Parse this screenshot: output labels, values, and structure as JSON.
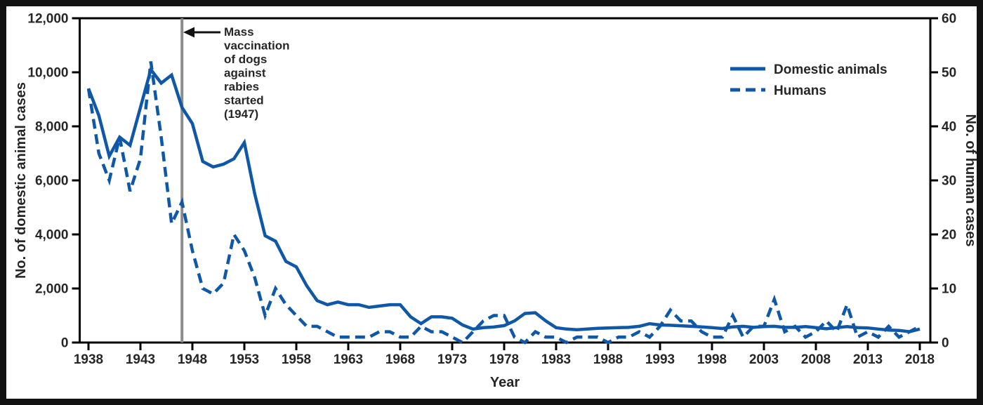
{
  "chart_data": {
    "type": "line",
    "x": [
      1938,
      1939,
      1940,
      1941,
      1942,
      1943,
      1944,
      1945,
      1946,
      1947,
      1948,
      1949,
      1950,
      1951,
      1952,
      1953,
      1954,
      1955,
      1956,
      1957,
      1958,
      1959,
      1960,
      1961,
      1962,
      1963,
      1964,
      1965,
      1966,
      1967,
      1968,
      1969,
      1970,
      1971,
      1972,
      1973,
      1974,
      1975,
      1976,
      1977,
      1978,
      1979,
      1980,
      1981,
      1982,
      1983,
      1984,
      1985,
      1986,
      1987,
      1988,
      1989,
      1990,
      1991,
      1992,
      1993,
      1994,
      1995,
      1996,
      1997,
      1998,
      1999,
      2000,
      2001,
      2002,
      2003,
      2004,
      2005,
      2006,
      2007,
      2008,
      2009,
      2010,
      2011,
      2012,
      2013,
      2014,
      2015,
      2016,
      2017,
      2018
    ],
    "series": [
      {
        "name": "Domestic animals",
        "axis": "left",
        "style": "solid",
        "values": [
          9400,
          8400,
          6900,
          7600,
          7300,
          8700,
          10100,
          9600,
          9900,
          8700,
          8100,
          6700,
          6500,
          6600,
          6800,
          7400,
          5500,
          3950,
          3750,
          3000,
          2800,
          2100,
          1550,
          1400,
          1500,
          1400,
          1400,
          1300,
          1350,
          1400,
          1400,
          950,
          700,
          950,
          950,
          900,
          650,
          500,
          550,
          575,
          625,
          800,
          1075,
          1100,
          800,
          550,
          500,
          475,
          500,
          525,
          540,
          550,
          560,
          600,
          700,
          650,
          640,
          620,
          600,
          580,
          550,
          520,
          580,
          600,
          560,
          590,
          600,
          560,
          560,
          590,
          550,
          510,
          550,
          590,
          550,
          540,
          500,
          460,
          450,
          400,
          500
        ]
      },
      {
        "name": "Humans",
        "axis": "right",
        "style": "dashed",
        "values": [
          47,
          35,
          30,
          38,
          28,
          34,
          52,
          38,
          22,
          26,
          17,
          10,
          9,
          11,
          20,
          17,
          12,
          5,
          10,
          7,
          5,
          3,
          3,
          2,
          1,
          1,
          1,
          1,
          2,
          2,
          1,
          1,
          3,
          2,
          2,
          1,
          0,
          2,
          4,
          5,
          5,
          1,
          0,
          2,
          1,
          1,
          0,
          1,
          1,
          1,
          0,
          1,
          1,
          2,
          1,
          3,
          6,
          4,
          4,
          2,
          1,
          1,
          5,
          1,
          3,
          3,
          8,
          2,
          3,
          1,
          2,
          4,
          2,
          7,
          1,
          2,
          1,
          3,
          1,
          2,
          3
        ]
      }
    ],
    "left_axis": {
      "label": "No. of domestic animal cases",
      "min": 0,
      "max": 12000,
      "tick_values": [
        0,
        2000,
        4000,
        6000,
        8000,
        10000,
        12000
      ],
      "tick_labels": [
        "0",
        "2,000",
        "4,000",
        "6,000",
        "8,000",
        "10,000",
        "12,000"
      ]
    },
    "right_axis": {
      "label": "No. of human cases",
      "min": 0,
      "max": 60,
      "tick_values": [
        0,
        10,
        20,
        30,
        40,
        50,
        60
      ],
      "tick_labels": [
        "0",
        "10",
        "20",
        "30",
        "40",
        "50",
        "60"
      ]
    },
    "xlabel": "Year",
    "x_tick_years": [
      1938,
      1943,
      1948,
      1953,
      1958,
      1963,
      1968,
      1973,
      1978,
      1983,
      1988,
      1993,
      1998,
      2003,
      2008,
      2013,
      2018
    ],
    "legend": {
      "position": "top-right",
      "entries": [
        {
          "label": "Domestic animals",
          "style": "solid"
        },
        {
          "label": "Humans",
          "style": "dashed"
        }
      ]
    },
    "annotation": {
      "text": "Mass vaccination of dogs against rabies started (1947)",
      "lines": [
        "Mass",
        "vaccination",
        "of dogs",
        "against",
        "rabies",
        "started",
        "(1947)"
      ],
      "year": 1947
    },
    "grid": false
  },
  "colors": {
    "line_blue": "#0F58A8",
    "vline_gray": "#8C8C8C",
    "text": "#262626",
    "axis_black": "#000000",
    "background": "#FFFFFF",
    "border_black": "#121212"
  }
}
